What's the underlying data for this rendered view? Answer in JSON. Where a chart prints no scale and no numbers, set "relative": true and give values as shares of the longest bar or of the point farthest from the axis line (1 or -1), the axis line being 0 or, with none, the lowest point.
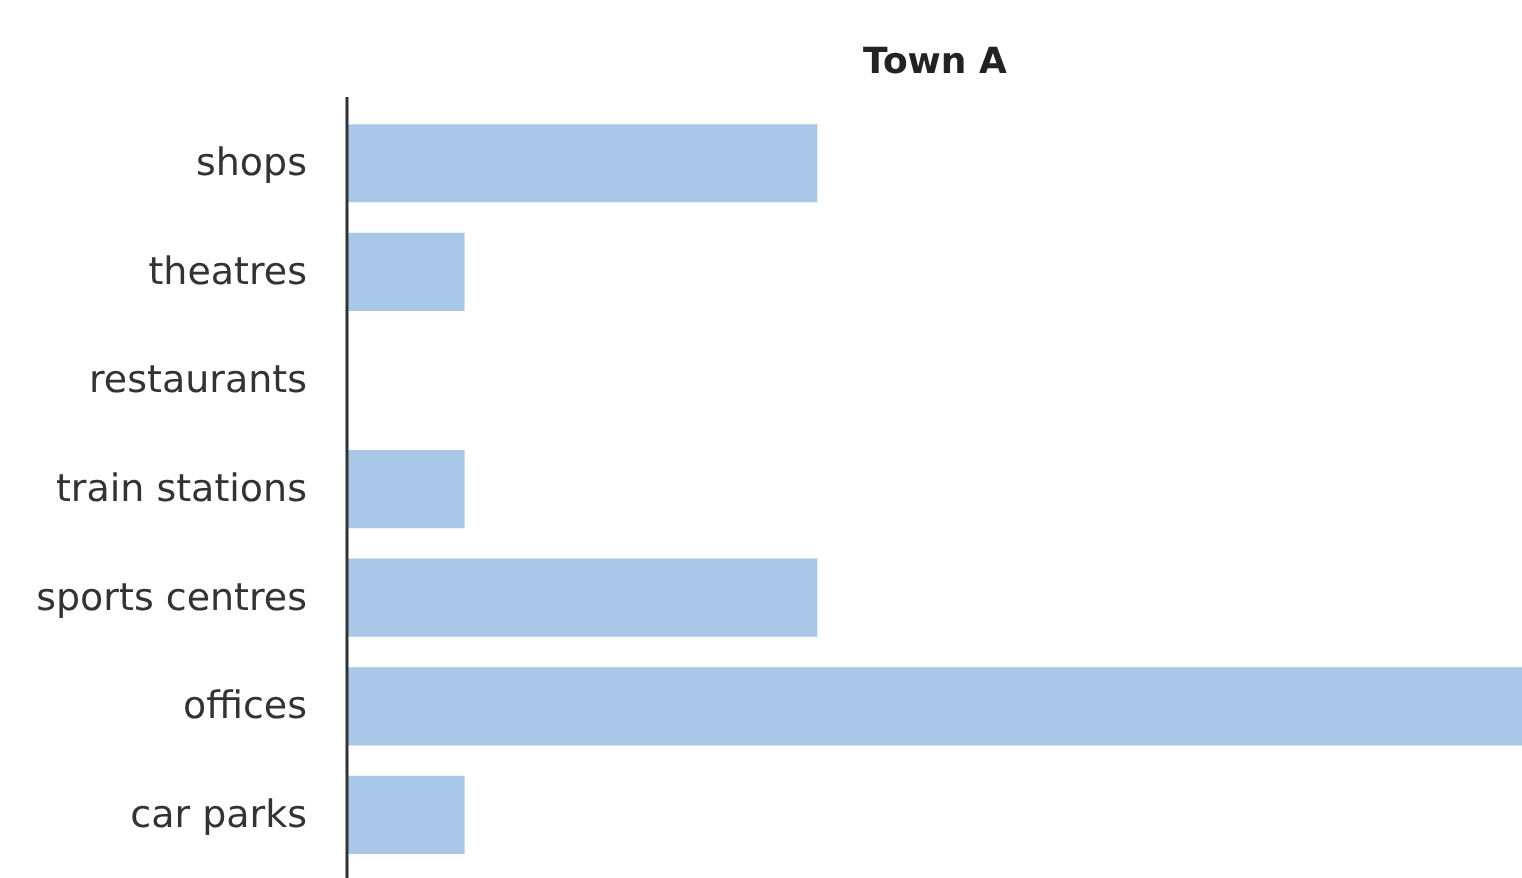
{
  "chart_data": {
    "type": "bar",
    "orientation": "horizontal",
    "relative": true,
    "title": "Town A",
    "categories": [
      "shops",
      "theatres",
      "restaurants",
      "train stations",
      "sports centres",
      "offices",
      "car parks"
    ],
    "values": [
      0.4,
      0.1,
      0,
      0.1,
      0.4,
      1,
      0.1
    ],
    "color": "#a9c8e8",
    "grid": false
  }
}
